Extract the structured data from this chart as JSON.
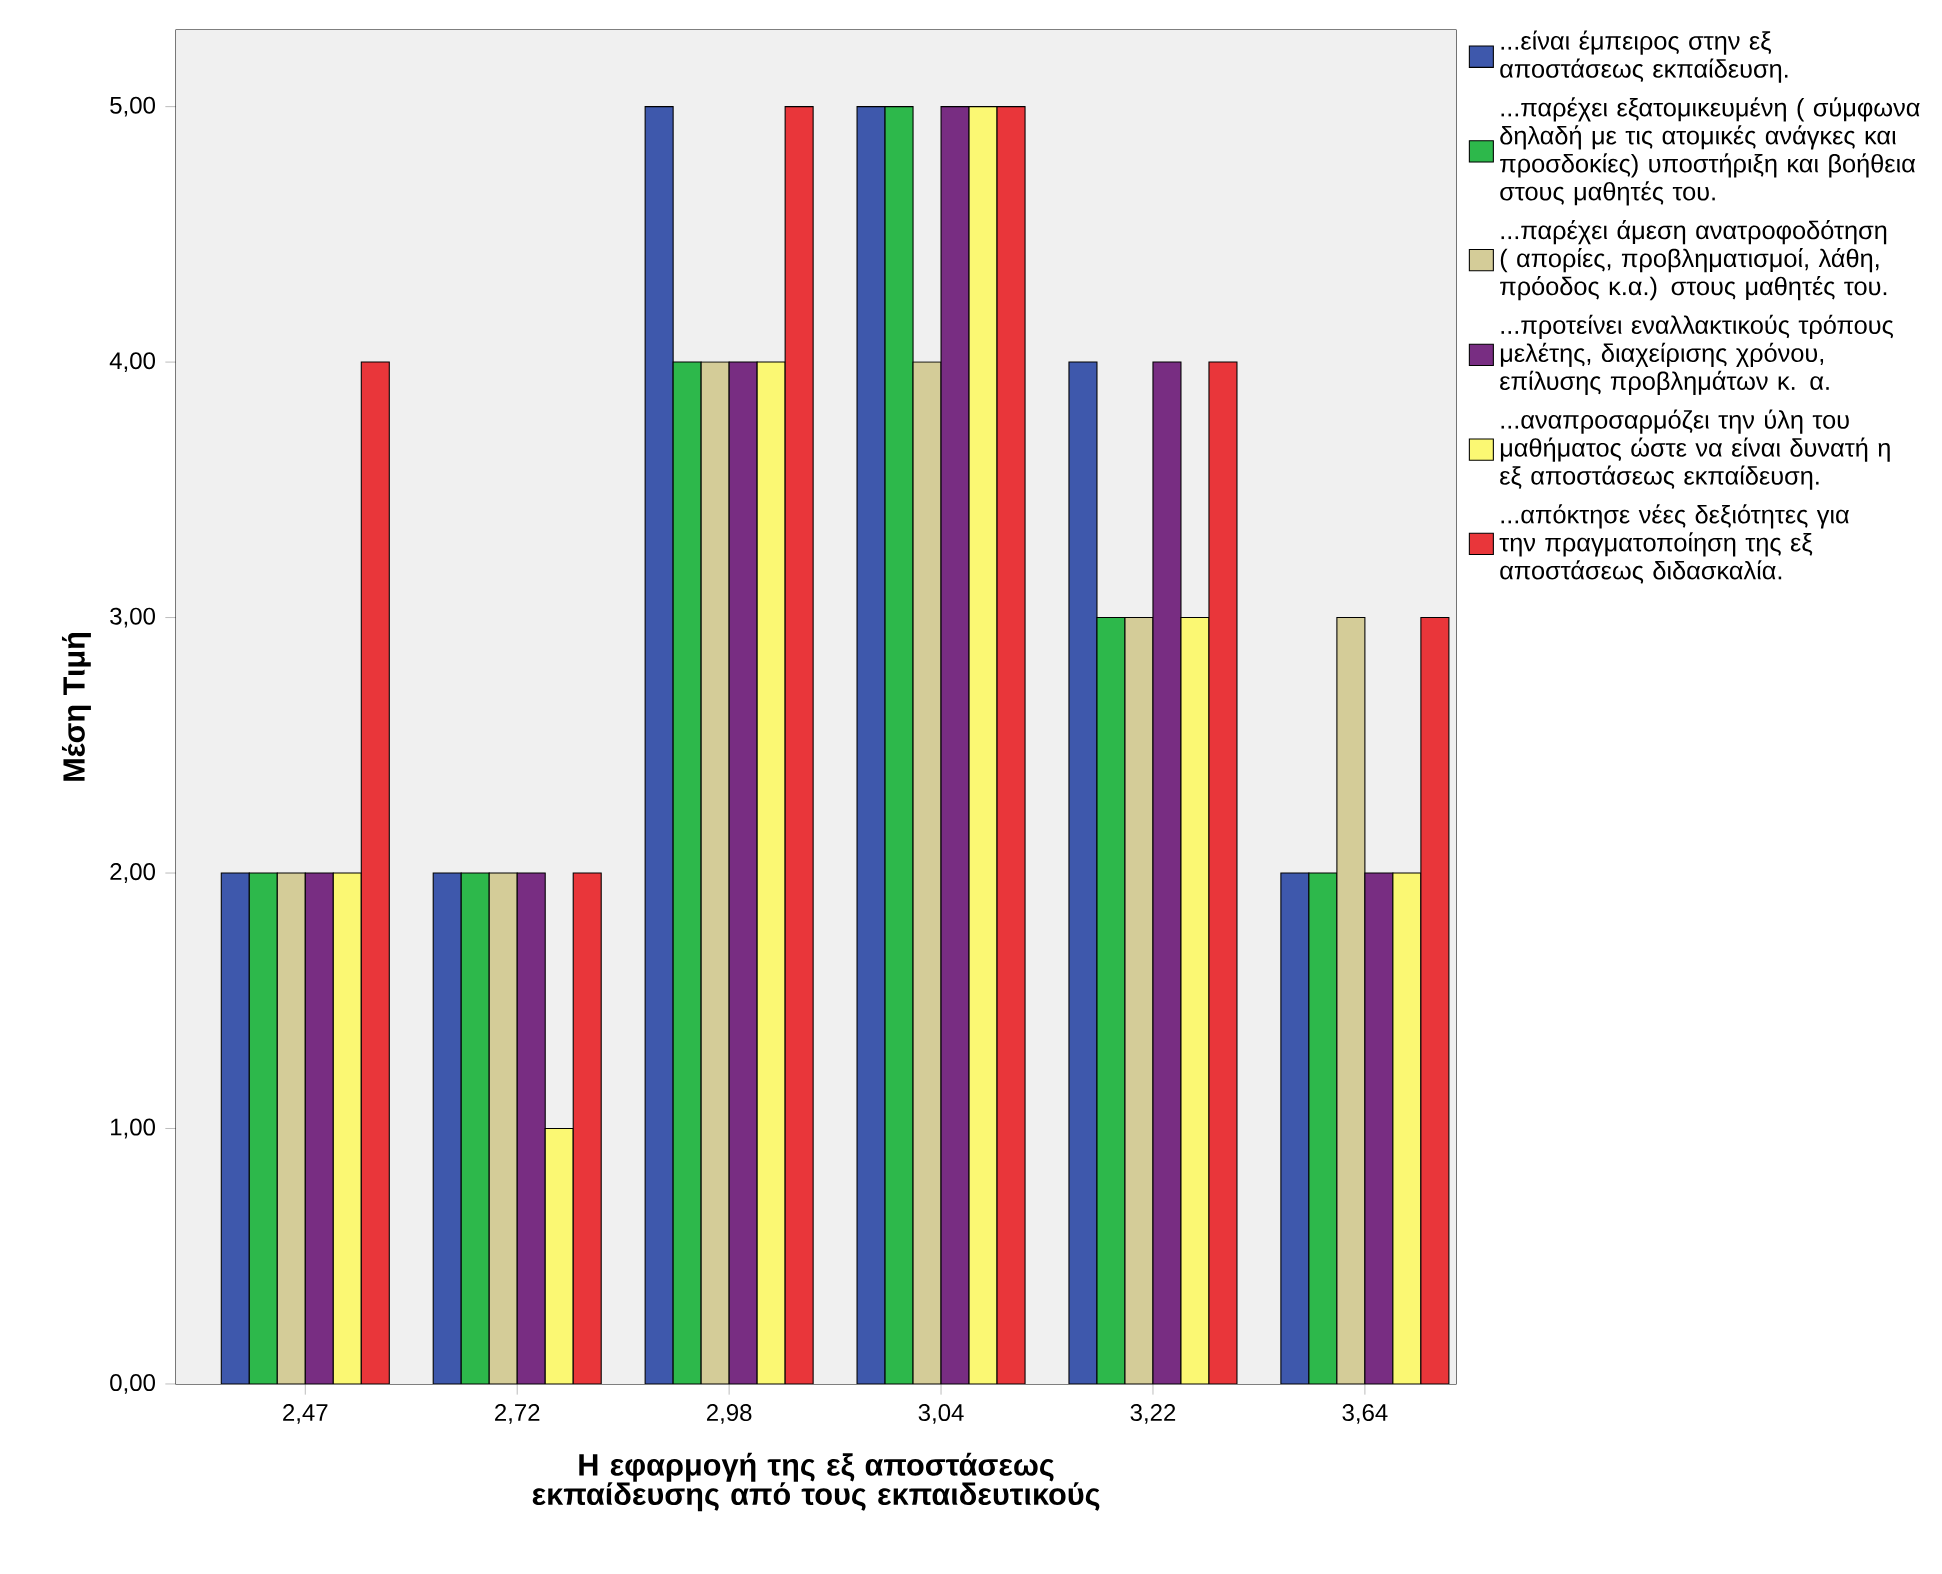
{
  "chart_data": {
    "type": "bar",
    "xlabel": "Η εφαρμογή της εξ αποστάσεως εκπαίδευσης από τους εκπαιδευτικούς",
    "ylabel": "Μέση Τιμή",
    "categories": [
      "2,47",
      "2,72",
      "2,98",
      "3,04",
      "3,22",
      "3,64"
    ],
    "ylim": [
      0,
      5.3
    ],
    "yticks": [
      {
        "value": 0,
        "label": "0,00"
      },
      {
        "value": 1,
        "label": "1,00"
      },
      {
        "value": 2,
        "label": "2,00"
      },
      {
        "value": 3,
        "label": "3,00"
      },
      {
        "value": 4,
        "label": "4,00"
      },
      {
        "value": 5,
        "label": "5,00"
      }
    ],
    "legend": "right",
    "series": [
      {
        "name": "...είναι έμπειρος στην εξ αποστάσεως εκπαίδευση.",
        "color": "#3e58ac",
        "values": [
          2,
          2,
          5,
          5,
          4,
          2
        ]
      },
      {
        "name": "...παρέχει εξατομικευμένη ( σύμφωνα δηλαδή με τις ατομικές ανάγκες και προσδοκίες) υποστήριξη και βοήθεια στους μαθητές του.",
        "color": "#2db84b",
        "values": [
          2,
          2,
          4,
          5,
          3,
          2
        ]
      },
      {
        "name": "...παρέχει άμεση ανατροφοδότηση ( απορίες, προβληματισμοί, λάθη, πρόοδος κ.α.) στους μαθητές του.",
        "color": "#d4cc98",
        "values": [
          2,
          2,
          4,
          4,
          3,
          3
        ]
      },
      {
        "name": "...προτείνει εναλλακτικούς τρόπους μελέτης, διαχείρισης χρόνου, επίλυσης προβλημάτων κ. α.",
        "color": "#782d82",
        "values": [
          2,
          2,
          4,
          5,
          4,
          2
        ]
      },
      {
        "name": "...αναπροσαρμόζει την ύλη του μαθήματος ώστε να είναι δυνατή η εξ αποστάσεως εκπαίδευση.",
        "color": "#fbf873",
        "values": [
          2,
          1,
          4,
          5,
          3,
          2
        ]
      },
      {
        "name": "...απόκτησε νέες δεξιότητες για την πραγματοποίηση της εξ αποστάσεως διδασκαλία.",
        "color": "#e9363a",
        "values": [
          4,
          2,
          5,
          5,
          4,
          3
        ]
      }
    ]
  }
}
